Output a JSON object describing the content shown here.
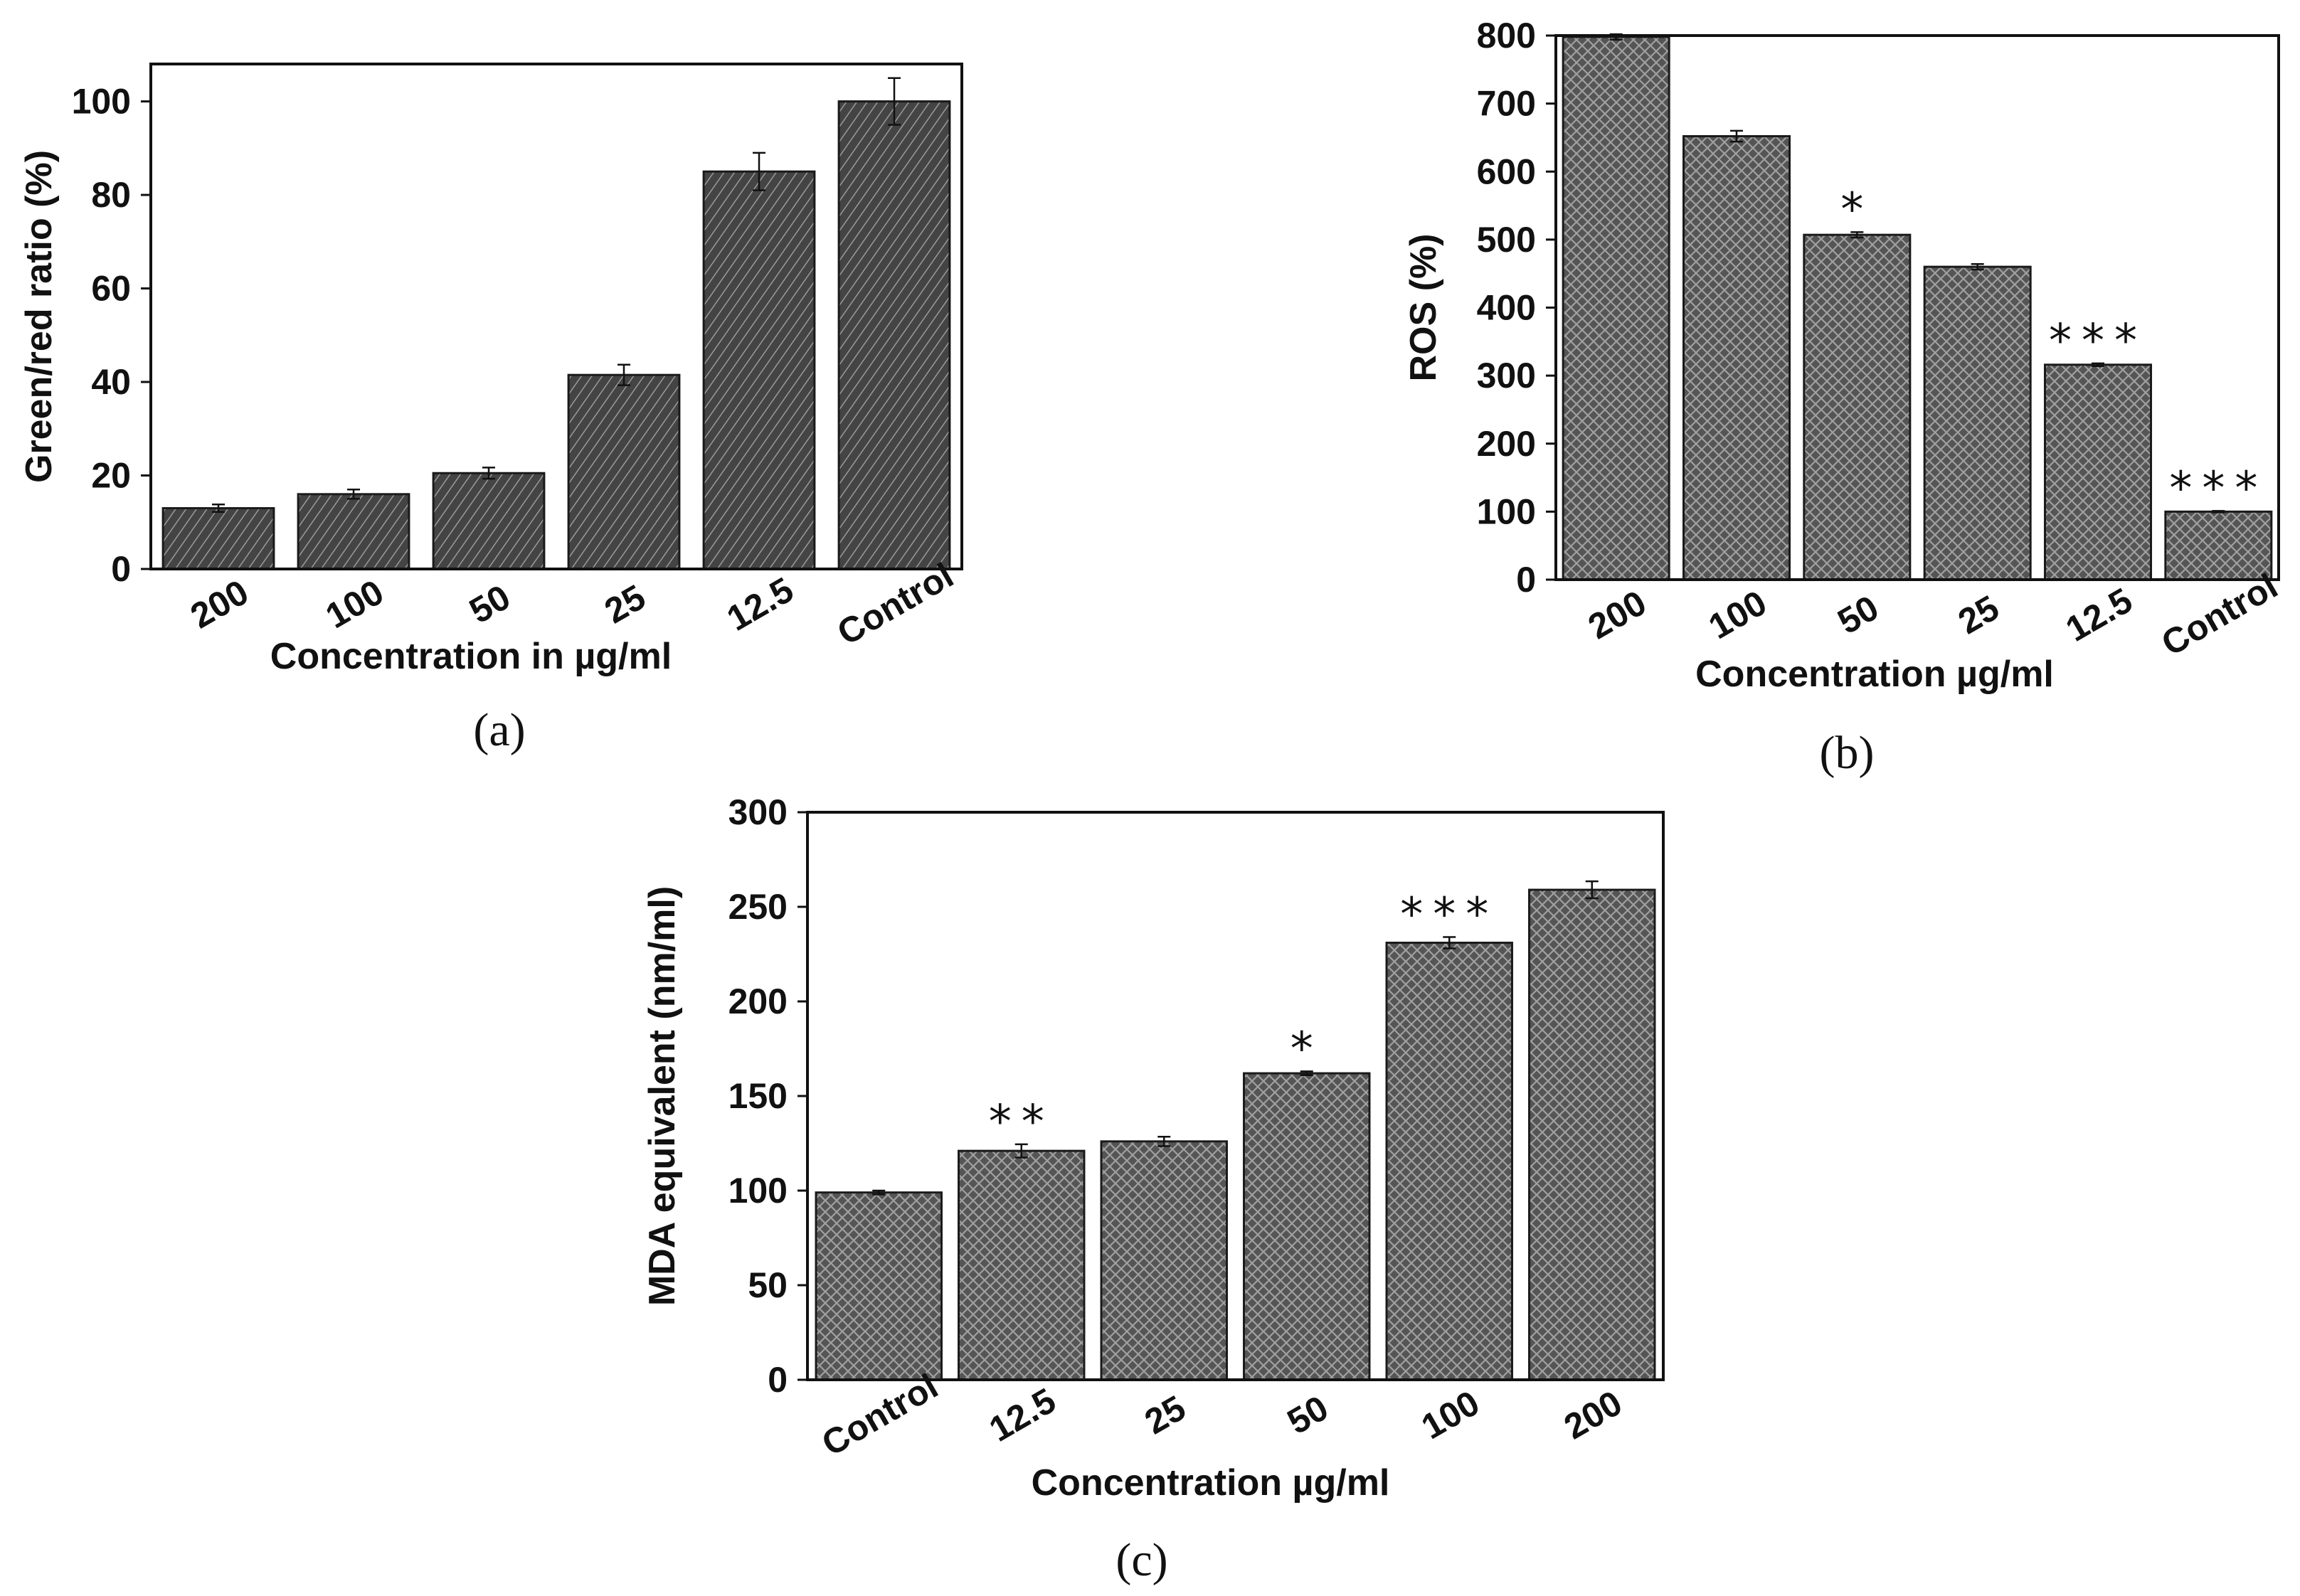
{
  "chart_data": [
    {
      "type": "bar",
      "panel": "(a)",
      "categories": [
        "200",
        "100",
        "50",
        "25",
        "12.5",
        "Control"
      ],
      "values": [
        13,
        16,
        20.5,
        41.5,
        85,
        100
      ],
      "errors": [
        0.8,
        1,
        1.2,
        2.2,
        4,
        5
      ],
      "significance": [
        "",
        "",
        "",
        "",
        "",
        ""
      ],
      "title": "",
      "xlabel": "Concentration in µg/ml",
      "ylabel": "Green/red ratio (%)",
      "ylim": [
        0,
        108
      ],
      "yticks": [
        0,
        20,
        40,
        60,
        80,
        100
      ],
      "pattern": "diagonal",
      "bar_color": "#3a3a3a"
    },
    {
      "type": "bar",
      "panel": "(b)",
      "categories": [
        "200",
        "100",
        "50",
        "25",
        "12.5",
        "Control"
      ],
      "values": [
        798,
        652,
        507,
        460,
        316,
        100
      ],
      "errors": [
        4,
        8,
        4,
        4,
        2,
        1
      ],
      "significance": [
        "",
        "",
        "*",
        "",
        "***",
        "***"
      ],
      "title": "",
      "xlabel": "Concentration µg/ml",
      "ylabel": "ROS (%)",
      "ylim": [
        0,
        800
      ],
      "yticks": [
        0,
        100,
        200,
        300,
        400,
        500,
        600,
        700,
        800
      ],
      "pattern": "crosshatch",
      "bar_color": "#5a5a5a"
    },
    {
      "type": "bar",
      "panel": "(c)",
      "categories": [
        "Control",
        "12.5",
        "25",
        "50",
        "100",
        "200"
      ],
      "values": [
        99,
        121,
        126,
        162,
        231,
        259
      ],
      "errors": [
        1,
        3.5,
        2.5,
        1,
        3,
        4.5
      ],
      "significance": [
        "",
        "**",
        "",
        "*",
        "***",
        ""
      ],
      "title": "",
      "xlabel": "Concentration µg/ml",
      "ylabel": "MDA equivalent (nm/ml)",
      "ylim": [
        0,
        300
      ],
      "yticks": [
        0,
        50,
        100,
        150,
        200,
        250,
        300
      ],
      "pattern": "crosshatch",
      "bar_color": "#5a5a5a"
    }
  ]
}
